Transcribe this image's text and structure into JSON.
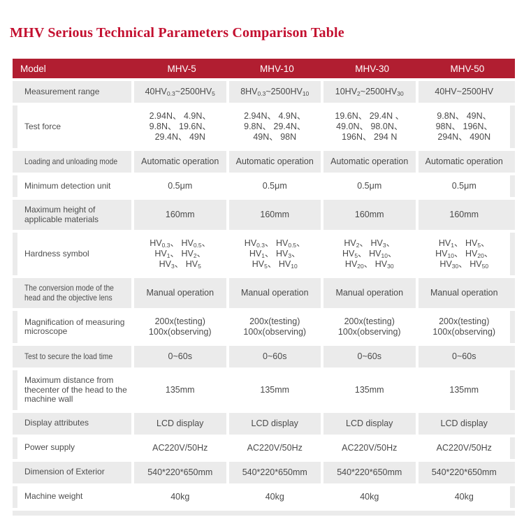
{
  "page_title": "MHV Serious Technical Parameters Comparison Table",
  "colors": {
    "title_red": "#c30f2f",
    "header_bg": "#b11e31",
    "header_text": "#ffffff",
    "row_gray": "#ebebeb",
    "row_white": "#ffffff",
    "body_text": "#4a4a4a"
  },
  "table": {
    "columns": [
      "Model",
      "MHV-5",
      "MHV-10",
      "MHV-30",
      "MHV-50"
    ],
    "rows": [
      {
        "label": "Measurement range",
        "cells": [
          [
            "40HV⟨0.3⟩~2500HV⟨5⟩"
          ],
          [
            "8HV⟨0.3⟩~2500HV⟨10⟩"
          ],
          [
            "10HV⟨2⟩~2500HV⟨30⟩"
          ],
          [
            "40HV~2500HV"
          ]
        ]
      },
      {
        "label": "Test force",
        "cells": [
          [
            "2.94N、 4.9N、",
            "9.8N、 19.6N、",
            "29.4N、 49N"
          ],
          [
            "2.94N、 4.9N、",
            "9.8N、 29.4N、",
            "49N、 98N"
          ],
          [
            "19.6N、 29.4N 、",
            "49.0N、 98.0N、",
            "196N、 294 N"
          ],
          [
            "9.8N、 49N、",
            "98N、 196N、",
            "294N、 490N"
          ]
        ]
      },
      {
        "label": "Loading and unloading mode",
        "condensed": true,
        "cells": [
          [
            "Automatic operation"
          ],
          [
            "Automatic operation"
          ],
          [
            "Automatic operation"
          ],
          [
            "Automatic operation"
          ]
        ]
      },
      {
        "label": "Minimum detection unit",
        "cells": [
          [
            "0.5μm"
          ],
          [
            "0.5μm"
          ],
          [
            "0.5μm"
          ],
          [
            "0.5μm"
          ]
        ]
      },
      {
        "label": "Maximum height of applicable materials",
        "cells": [
          [
            "160mm"
          ],
          [
            "160mm"
          ],
          [
            "160mm"
          ],
          [
            "160mm"
          ]
        ]
      },
      {
        "label": "Hardness symbol",
        "cells": [
          [
            "HV⟨0.3⟩、 HV⟨0.5⟩、",
            "HV⟨1⟩、 HV⟨2⟩、",
            "HV⟨3⟩、 HV⟨5⟩"
          ],
          [
            "HV⟨0.3⟩、 HV⟨0.5⟩、",
            "HV⟨1⟩、 HV⟨3⟩、",
            "HV⟨5⟩、 HV⟨10⟩"
          ],
          [
            "HV⟨2⟩、 HV⟨3⟩、",
            "HV⟨5⟩、 HV⟨10⟩、",
            "HV⟨20⟩、 HV⟨30⟩"
          ],
          [
            "HV⟨1⟩、 HV⟨5⟩、",
            "HV⟨10⟩、 HV⟨20⟩、",
            "HV⟨30⟩、 HV⟨50⟩"
          ]
        ]
      },
      {
        "label": "The conversion mode of the head and the objective lens",
        "condensed": true,
        "wrap": true,
        "cells": [
          [
            "Manual operation"
          ],
          [
            "Manual operation"
          ],
          [
            "Manual operation"
          ],
          [
            "Manual operation"
          ]
        ]
      },
      {
        "label": "Magnification of measuring microscope",
        "cells": [
          [
            "200x(testing)",
            "100x(observing)"
          ],
          [
            "200x(testing)",
            "100x(observing)"
          ],
          [
            "200x(testing)",
            "100x(observing)"
          ],
          [
            "200x(testing)",
            "100x(observing)"
          ]
        ]
      },
      {
        "label": "Test to secure the load time",
        "condensed": true,
        "cells": [
          [
            "0~60s"
          ],
          [
            "0~60s"
          ],
          [
            "0~60s"
          ],
          [
            "0~60s"
          ]
        ]
      },
      {
        "label": "Maximum distance from thecenter of the head to the machine wall",
        "cells": [
          [
            "135mm"
          ],
          [
            "135mm"
          ],
          [
            "135mm"
          ],
          [
            "135mm"
          ]
        ]
      },
      {
        "label": "Display attributes",
        "cells": [
          [
            "LCD display"
          ],
          [
            "LCD display"
          ],
          [
            "LCD display"
          ],
          [
            "LCD display"
          ]
        ]
      },
      {
        "label": "Power supply",
        "cells": [
          [
            "AC220V/50Hz"
          ],
          [
            "AC220V/50Hz"
          ],
          [
            "AC220V/50Hz"
          ],
          [
            "AC220V/50Hz"
          ]
        ]
      },
      {
        "label": "Dimension of Exterior",
        "cells": [
          [
            "540*220*650mm"
          ],
          [
            "540*220*650mm"
          ],
          [
            "540*220*650mm"
          ],
          [
            "540*220*650mm"
          ]
        ]
      },
      {
        "label": "Machine weight",
        "cells": [
          [
            "40kg"
          ],
          [
            "40kg"
          ],
          [
            "40kg"
          ],
          [
            "40kg"
          ]
        ]
      }
    ]
  }
}
